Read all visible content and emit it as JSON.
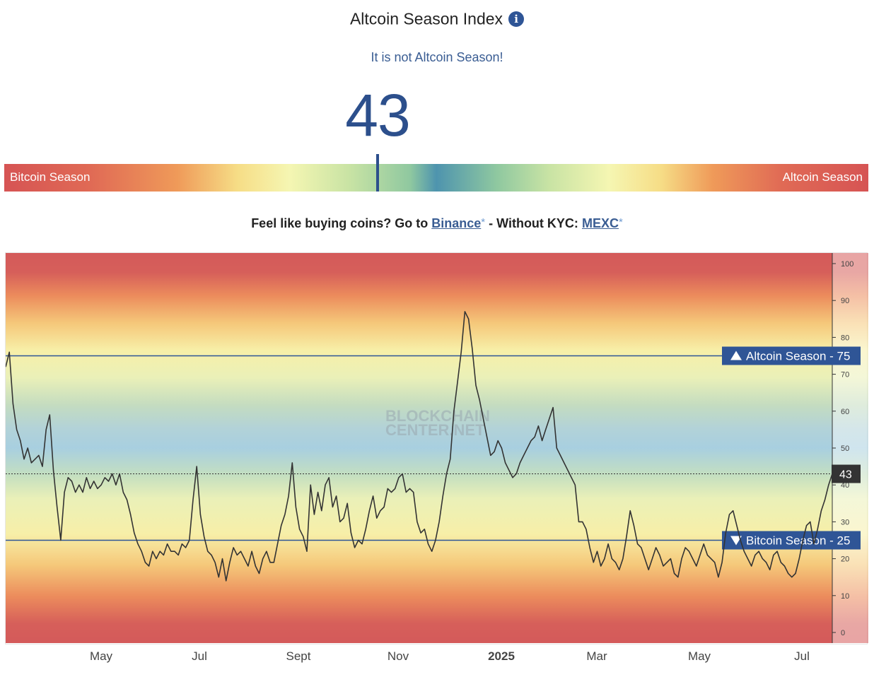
{
  "header": {
    "title": "Altcoin Season Index",
    "info_icon": "info-icon"
  },
  "status": "It is not Altcoin Season!",
  "current_value": "43",
  "gauge": {
    "left_label": "Bitcoin Season",
    "right_label": "Altcoin Season",
    "value": 43
  },
  "promo": {
    "prefix": "Feel like buying coins? Go to",
    "binance": "Binance",
    "star": "*",
    "middle": "- Without KYC:",
    "mexc": "MEXC"
  },
  "colors": {
    "accent": "#2c4f8c",
    "line": "#333333",
    "label_bg": "#2f5596",
    "bitcoin_season": "#d65454"
  },
  "chart_data": {
    "type": "line",
    "x_labels": [
      "May",
      "Jul",
      "Sept",
      "Nov",
      "2025",
      "Mar",
      "May",
      "Jul"
    ],
    "ylim": [
      0,
      100
    ],
    "y_ticks": [
      "0",
      "10",
      "20",
      "30",
      "40",
      "50",
      "60",
      "70",
      "80",
      "90",
      "100"
    ],
    "grid": false,
    "thresholds": [
      {
        "label": "Altcoin Season",
        "value": 75
      },
      {
        "label": "Bitcoin Season",
        "value": 25
      }
    ],
    "current": {
      "label": "43",
      "value": 43
    },
    "watermark": [
      "BLOCKCHAIN",
      "CENTER.NET"
    ],
    "series": [
      {
        "values": [
          72,
          76,
          62,
          55,
          52,
          47,
          50,
          46,
          47,
          48,
          45,
          55,
          59,
          44,
          34,
          25,
          38,
          42,
          41,
          38,
          40,
          38,
          42,
          39,
          41,
          39,
          40,
          42,
          41,
          43,
          40,
          43,
          38,
          36,
          32,
          27,
          24,
          22,
          19,
          18,
          22,
          20,
          22,
          21,
          24,
          22,
          22,
          21,
          24,
          23,
          25,
          36,
          45,
          32,
          26,
          22,
          21,
          19,
          15,
          20,
          14,
          19,
          23,
          21,
          22,
          20,
          18,
          22,
          18,
          16,
          20,
          22,
          19,
          19,
          24,
          29,
          32,
          37,
          46,
          34,
          28,
          26,
          22,
          40,
          32,
          38,
          33,
          40,
          42,
          34,
          37,
          30,
          31,
          35,
          27,
          23,
          25,
          24,
          28,
          33,
          37,
          31,
          33,
          34,
          39,
          38,
          39,
          42,
          43,
          38,
          39,
          38,
          30,
          27,
          28,
          24,
          22,
          25,
          30,
          37,
          43,
          47,
          60,
          68,
          76,
          87,
          85,
          77,
          67,
          63,
          58,
          53,
          48,
          49,
          52,
          50,
          46,
          44,
          42,
          43,
          46,
          48,
          50,
          52,
          53,
          56,
          52,
          55,
          58,
          61,
          50,
          48,
          46,
          44,
          42,
          40,
          30,
          30,
          28,
          23,
          19,
          22,
          18,
          20,
          24,
          20,
          19,
          17,
          20,
          26,
          33,
          29,
          24,
          23,
          20,
          17,
          20,
          23,
          21,
          18,
          19,
          20,
          16,
          15,
          20,
          23,
          22,
          20,
          18,
          21,
          24,
          21,
          20,
          19,
          15,
          19,
          27,
          32,
          33,
          29,
          25,
          22,
          20,
          18,
          21,
          22,
          20,
          19,
          17,
          21,
          22,
          19,
          18,
          16,
          15,
          16,
          20,
          25,
          29,
          30,
          24,
          28,
          33,
          36,
          40,
          43
        ]
      }
    ]
  }
}
